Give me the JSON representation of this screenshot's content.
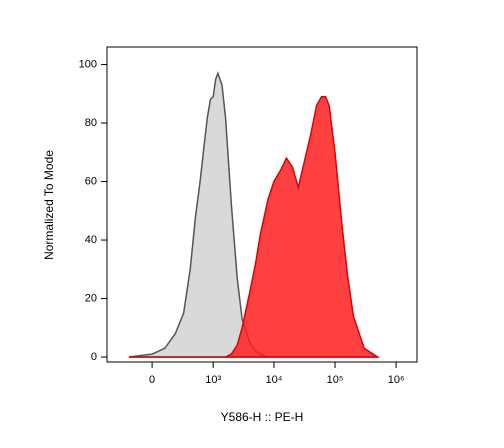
{
  "chart_data": {
    "type": "area",
    "xlabel": "Y586-H :: PE-H",
    "ylabel": "Normalized To Mode",
    "xscale": "biexponential",
    "x": [
      -200,
      0,
      100,
      200,
      300,
      400,
      500,
      600,
      700,
      800,
      900,
      1000,
      1100,
      1200,
      1400,
      1600,
      2000,
      2500,
      3000,
      4000,
      5000,
      6000,
      8000,
      10000,
      13000,
      16000,
      20000,
      25000,
      30000,
      40000,
      50000,
      60000,
      70000,
      80000,
      100000,
      130000,
      160000,
      200000,
      300000,
      500000
    ],
    "series": [
      {
        "color": "#d9d9d9",
        "stroke": "#555555",
        "values": [
          0,
          1,
          3,
          8,
          15,
          30,
          48,
          60,
          72,
          82,
          88,
          89,
          95,
          97,
          93,
          82,
          52,
          27,
          13,
          5,
          2,
          1,
          0,
          0,
          0,
          0,
          0,
          0,
          0,
          0,
          0,
          0,
          0,
          0,
          0,
          0,
          0,
          0,
          0,
          0
        ]
      },
      {
        "color": "#ff1f1f",
        "stroke": "#e00000",
        "values": [
          0,
          0,
          0,
          0,
          0,
          0,
          0,
          0,
          0,
          0,
          0,
          0,
          0,
          0,
          0,
          0,
          1,
          4,
          10,
          22,
          32,
          42,
          54,
          60,
          64,
          68,
          65,
          58,
          65,
          76,
          86,
          89,
          89,
          86,
          70,
          45,
          28,
          14,
          3,
          0
        ]
      }
    ],
    "xlim": [
      -535,
      2200000
    ],
    "xticks": [
      0,
      {
        "value": 1000,
        "label": "10³"
      },
      {
        "value": 10000,
        "label": "10⁴"
      },
      {
        "value": 100000,
        "label": "10⁵"
      },
      {
        "value": 1000000,
        "label": "10⁶"
      }
    ],
    "ylim": [
      -1.7,
      106
    ],
    "yticks": [
      0,
      20,
      40,
      60,
      80,
      100
    ]
  }
}
